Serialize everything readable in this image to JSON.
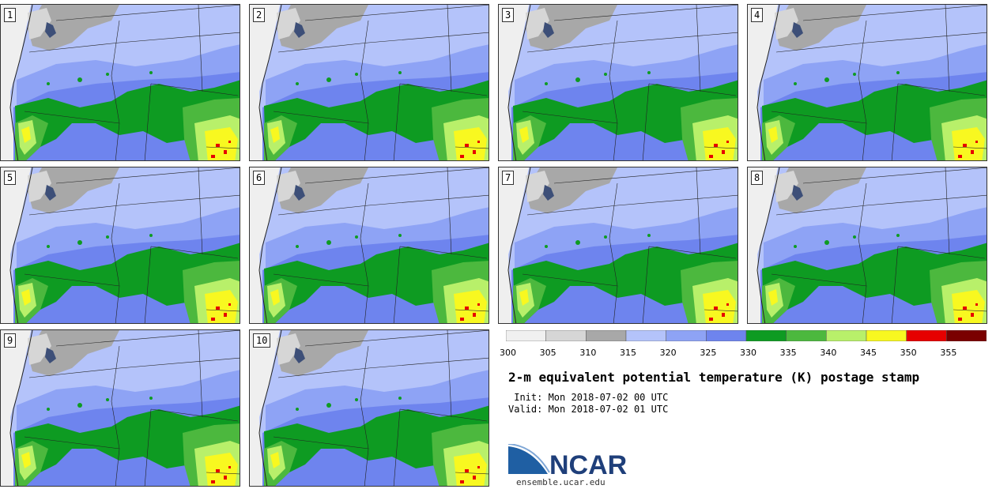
{
  "panels": [
    {
      "label": "1"
    },
    {
      "label": "2"
    },
    {
      "label": "3"
    },
    {
      "label": "4"
    },
    {
      "label": "5"
    },
    {
      "label": "6"
    },
    {
      "label": "7"
    },
    {
      "label": "8"
    },
    {
      "label": "9"
    },
    {
      "label": "10"
    }
  ],
  "colorbar": {
    "ticks": [
      "300",
      "305",
      "310",
      "315",
      "320",
      "325",
      "330",
      "335",
      "340",
      "345",
      "350",
      "355"
    ],
    "colors": [
      "#f0f0f0",
      "#d6d6d6",
      "#a8a8a8",
      "#b4c3fa",
      "#8ea3f5",
      "#6e84ee",
      "#0e9b22",
      "#4cb83e",
      "#b8f06a",
      "#f8f820",
      "#e60000",
      "#7a0000"
    ]
  },
  "title": "2-m equivalent potential temperature (K) postage stamp",
  "init": " Init: Mon 2018-07-02 00 UTC",
  "valid": "Valid: Mon 2018-07-02 01 UTC",
  "logo": {
    "name": "NCAR",
    "colors": {
      "swoosh": "#1f5fa3",
      "text": "#1f3f7a"
    }
  },
  "site": "ensemble.ucar.edu"
}
